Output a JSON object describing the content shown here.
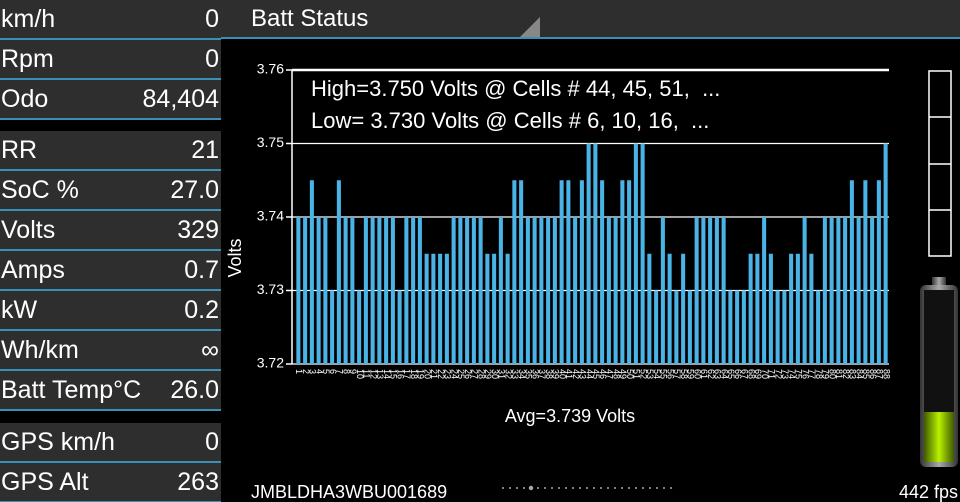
{
  "left_panel": {
    "groups": [
      [
        {
          "label": "km/h",
          "value": "0"
        },
        {
          "label": "Rpm",
          "value": "0"
        },
        {
          "label": "Odo",
          "value": "84,404"
        }
      ],
      [
        {
          "label": "RR",
          "value": "21"
        },
        {
          "label": "SoC %",
          "value": "27.0"
        },
        {
          "label": "Volts",
          "value": "329"
        },
        {
          "label": "Amps",
          "value": "0.7"
        },
        {
          "label": "kW",
          "value": "0.2"
        },
        {
          "label": "Wh/km",
          "value": "∞"
        },
        {
          "label": "Batt Temp°C",
          "value": "26.0"
        }
      ],
      [
        {
          "label": "GPS km/h",
          "value": "0"
        },
        {
          "label": "GPS Alt",
          "value": "263"
        }
      ]
    ]
  },
  "header": {
    "title": "Batt Status"
  },
  "footer": {
    "vin": "JMBLDHA3WBU001689",
    "fps": "442 fps"
  },
  "chart_data": {
    "type": "bar",
    "annotations": [
      "High=3.750 Volts @ Cells # 44, 45, 51,  ...",
      "Low= 3.730 Volts @ Cells # 6, 10, 16,  ..."
    ],
    "x_label": "Avg=3.739 Volts",
    "y_label": "Volts",
    "categories": [
      "1",
      "2",
      "3",
      "4",
      "5",
      "6",
      "7",
      "8",
      "9",
      "10",
      "11",
      "12",
      "13",
      "14",
      "15",
      "16",
      "17",
      "18",
      "19",
      "20",
      "21",
      "22",
      "23",
      "24",
      "25",
      "26",
      "27",
      "28",
      "29",
      "30",
      "31",
      "32",
      "33",
      "34",
      "35",
      "36",
      "37",
      "38",
      "39",
      "40",
      "41",
      "42",
      "43",
      "44",
      "45",
      "46",
      "47",
      "48",
      "49",
      "50",
      "51",
      "52",
      "53",
      "54",
      "55",
      "56",
      "57",
      "58",
      "59",
      "60",
      "61",
      "62",
      "63",
      "64",
      "65",
      "66",
      "67",
      "68",
      "69",
      "70",
      "71",
      "72",
      "73",
      "74",
      "75",
      "76",
      "77",
      "78",
      "79",
      "80",
      "81",
      "82",
      "83",
      "84",
      "85",
      "86",
      "87",
      "88"
    ],
    "values": [
      3.74,
      3.74,
      3.745,
      3.74,
      3.74,
      3.73,
      3.745,
      3.74,
      3.74,
      3.73,
      3.74,
      3.74,
      3.74,
      3.74,
      3.74,
      3.73,
      3.74,
      3.74,
      3.74,
      3.735,
      3.735,
      3.735,
      3.735,
      3.74,
      3.74,
      3.74,
      3.74,
      3.74,
      3.735,
      3.735,
      3.74,
      3.735,
      3.745,
      3.745,
      3.74,
      3.74,
      3.74,
      3.74,
      3.74,
      3.745,
      3.745,
      3.74,
      3.745,
      3.75,
      3.75,
      3.745,
      3.74,
      3.74,
      3.745,
      3.745,
      3.75,
      3.75,
      3.735,
      3.73,
      3.74,
      3.735,
      3.73,
      3.735,
      3.73,
      3.74,
      3.74,
      3.74,
      3.74,
      3.74,
      3.73,
      3.73,
      3.73,
      3.735,
      3.735,
      3.74,
      3.735,
      3.73,
      3.73,
      3.735,
      3.735,
      3.74,
      3.735,
      3.73,
      3.74,
      3.74,
      3.74,
      3.74,
      3.745,
      3.74,
      3.745,
      3.74,
      3.745,
      3.75
    ],
    "color": "#4ab4e6",
    "ylim": [
      3.72,
      3.76
    ],
    "yticks": [
      3.72,
      3.73,
      3.74,
      3.75,
      3.76
    ],
    "grid": true
  }
}
